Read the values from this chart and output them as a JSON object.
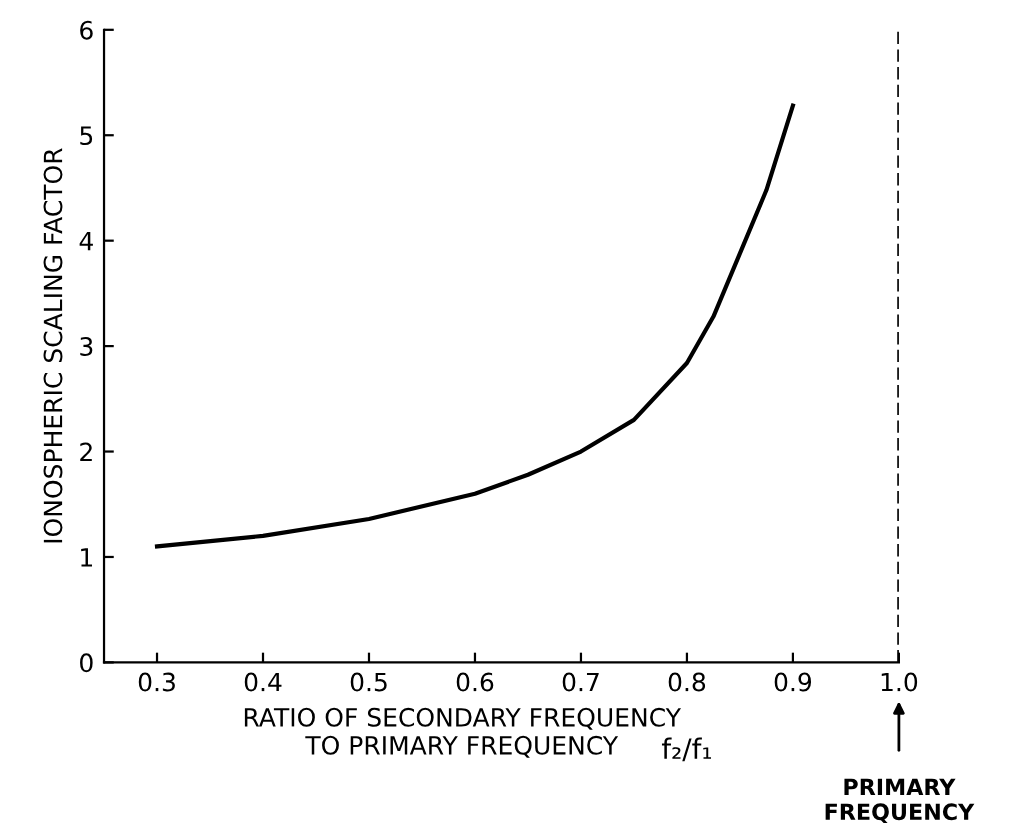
{
  "chart_data": {
    "type": "line",
    "xlabel": "RATIO OF SECONDARY FREQUENCY\nTO PRIMARY FREQUENCY",
    "ylabel": "IONOSPHERIC SCALING FACTOR",
    "annotations": [
      "f₂/f₁"
    ],
    "x": [
      0.3,
      0.4,
      0.5,
      0.6,
      0.65,
      0.7,
      0.75,
      0.8,
      0.825,
      0.85,
      0.875,
      0.9
    ],
    "series": [
      {
        "color": "#000000",
        "values": [
          1.1,
          1.2,
          1.36,
          1.6,
          1.78,
          2.0,
          2.3,
          2.84,
          3.28,
          3.88,
          4.48,
          5.28
        ]
      }
    ],
    "xlim": [
      0.25,
      1.0
    ],
    "xticks": [
      0.3,
      0.4,
      0.5,
      0.6,
      0.7,
      0.8,
      0.9,
      {
        "value": 1.0,
        "label": "1.0"
      }
    ],
    "ylim": [
      0,
      6
    ],
    "yticks": [
      0,
      1,
      2,
      3,
      4,
      5,
      6
    ],
    "ref_lines": [
      {
        "axis": "x",
        "value": 1.0,
        "label": "PRIMARY\nFREQUENCY",
        "color": "#000000",
        "line_style": "dashed"
      }
    ],
    "grid": false,
    "legend": false,
    "marker": "none",
    "line_style": "solid"
  }
}
